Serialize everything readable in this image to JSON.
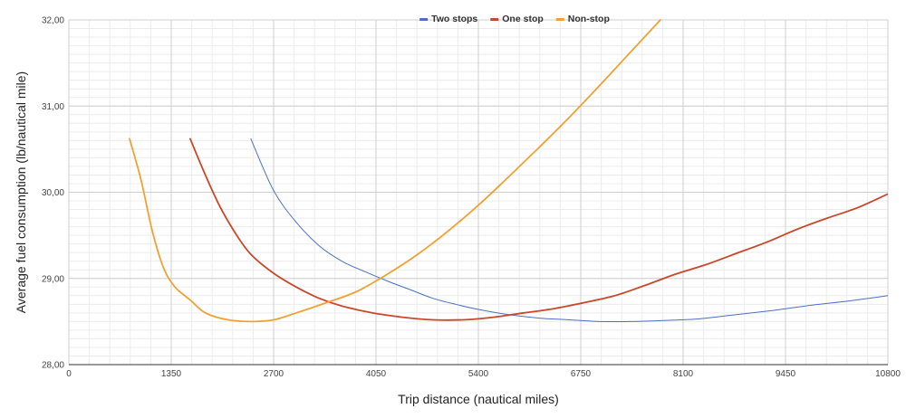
{
  "chart_data": {
    "type": "line",
    "title": "",
    "xlabel": "Trip distance (nautical miles)",
    "ylabel": "Average fuel consumption (lb/nautical mile)",
    "xlim": [
      0,
      10800
    ],
    "ylim": [
      28,
      32
    ],
    "x_ticks": [
      "0",
      "1350",
      "2700",
      "4050",
      "5400",
      "6750",
      "8100",
      "9450",
      "10800"
    ],
    "y_ticks": [
      "28,00",
      "29,00",
      "30,00",
      "31,00",
      "32,00"
    ],
    "grid": true,
    "legend_position": "top",
    "series": [
      {
        "name": "Two stops",
        "color": "#4a6fc4",
        "points": [
          [
            2400,
            30.62
          ],
          [
            2700,
            30.02
          ],
          [
            3000,
            29.65
          ],
          [
            3300,
            29.38
          ],
          [
            3600,
            29.2
          ],
          [
            3900,
            29.08
          ],
          [
            4200,
            28.97
          ],
          [
            4500,
            28.87
          ],
          [
            4800,
            28.77
          ],
          [
            5100,
            28.7
          ],
          [
            5400,
            28.64
          ],
          [
            5800,
            28.58
          ],
          [
            6200,
            28.54
          ],
          [
            6600,
            28.52
          ],
          [
            7000,
            28.5
          ],
          [
            7400,
            28.5
          ],
          [
            7800,
            28.51
          ],
          [
            8300,
            28.53
          ],
          [
            8800,
            28.58
          ],
          [
            9300,
            28.63
          ],
          [
            9800,
            28.69
          ],
          [
            10300,
            28.74
          ],
          [
            10800,
            28.8
          ]
        ]
      },
      {
        "name": "One stop",
        "color": "#c9472a",
        "points": [
          [
            1600,
            30.62
          ],
          [
            1800,
            30.2
          ],
          [
            2000,
            29.82
          ],
          [
            2200,
            29.52
          ],
          [
            2400,
            29.28
          ],
          [
            2700,
            29.06
          ],
          [
            3000,
            28.9
          ],
          [
            3300,
            28.77
          ],
          [
            3600,
            28.68
          ],
          [
            4000,
            28.6
          ],
          [
            4400,
            28.55
          ],
          [
            4800,
            28.52
          ],
          [
            5200,
            28.52
          ],
          [
            5600,
            28.55
          ],
          [
            6000,
            28.6
          ],
          [
            6400,
            28.65
          ],
          [
            6800,
            28.72
          ],
          [
            7200,
            28.8
          ],
          [
            7600,
            28.92
          ],
          [
            8000,
            29.05
          ],
          [
            8400,
            29.16
          ],
          [
            8800,
            29.29
          ],
          [
            9200,
            29.42
          ],
          [
            9600,
            29.57
          ],
          [
            10000,
            29.7
          ],
          [
            10400,
            29.82
          ],
          [
            10800,
            29.98
          ]
        ]
      },
      {
        "name": "Non-stop",
        "color": "#efa233",
        "points": [
          [
            800,
            30.62
          ],
          [
            950,
            30.15
          ],
          [
            1100,
            29.55
          ],
          [
            1250,
            29.12
          ],
          [
            1400,
            28.9
          ],
          [
            1600,
            28.75
          ],
          [
            1800,
            28.6
          ],
          [
            2100,
            28.52
          ],
          [
            2400,
            28.5
          ],
          [
            2700,
            28.52
          ],
          [
            3000,
            28.6
          ],
          [
            3400,
            28.72
          ],
          [
            3800,
            28.85
          ],
          [
            4200,
            29.05
          ],
          [
            4600,
            29.28
          ],
          [
            5000,
            29.55
          ],
          [
            5400,
            29.85
          ],
          [
            5800,
            30.18
          ],
          [
            6200,
            30.52
          ],
          [
            6600,
            30.87
          ],
          [
            7000,
            31.24
          ],
          [
            7400,
            31.62
          ],
          [
            7800,
            32.0
          ]
        ]
      }
    ]
  }
}
